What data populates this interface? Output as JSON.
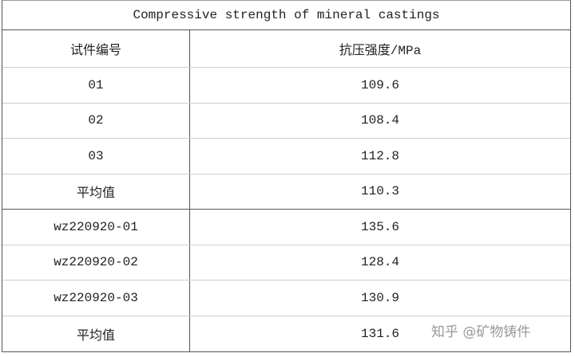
{
  "table": {
    "title": "Compressive strength of mineral castings",
    "header": [
      "试件编号",
      "抗压强度/MPa"
    ],
    "rows": [
      [
        "01",
        109.6
      ],
      [
        "02",
        108.4
      ],
      [
        "03",
        112.8
      ],
      [
        "平均值",
        110.3
      ],
      [
        "wz220920-01",
        135.6
      ],
      [
        "wz220920-02",
        128.4
      ],
      [
        "wz220920-03",
        130.9
      ],
      [
        "平均值",
        131.6
      ]
    ]
  },
  "watermark": "知乎 @矿物铸件"
}
